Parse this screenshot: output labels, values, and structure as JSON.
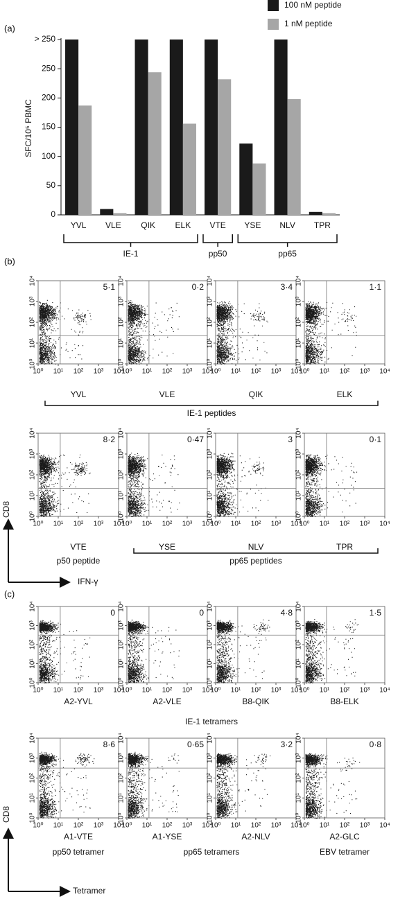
{
  "chart_data": [
    {
      "type": "bar",
      "panel_label": "(a)",
      "ylabel": "SFC/10⁵ PBMC",
      "categories": [
        "YVL",
        "VLE",
        "QIK",
        "ELK",
        "VTE",
        "YSE",
        "NLV",
        "TPR"
      ],
      "series": [
        {
          "name": "100 nM peptide",
          "color": "#1a1a1a",
          "values": [
            300,
            10,
            300,
            300,
            300,
            122,
            300,
            5
          ]
        },
        {
          "name": "1 nM peptide",
          "color": "#a6a6a6",
          "values": [
            187,
            3,
            244,
            156,
            232,
            88,
            198,
            3
          ]
        }
      ],
      "ylim": [
        0,
        300
      ],
      "yticks": [
        0,
        50,
        100,
        150,
        200,
        250,
        {
          "value": 300,
          "label": "> 250"
        }
      ],
      "groups": [
        {
          "label": "IE-1",
          "categories": [
            "YVL",
            "VLE",
            "QIK",
            "ELK"
          ]
        },
        {
          "label": "pp50",
          "categories": [
            "VTE"
          ]
        },
        {
          "label": "pp65",
          "categories": [
            "YSE",
            "NLV",
            "TPR"
          ]
        }
      ]
    },
    {
      "type": "flow",
      "panel_label": "(b)",
      "ylabel": "CD8",
      "xlabel": "IFN-γ",
      "xscale": "log",
      "yscale": "log",
      "lim": [
        1,
        10000
      ],
      "ticks": [
        {
          "value": 1,
          "label": "10⁰"
        },
        {
          "value": 10,
          "label": "10¹"
        },
        {
          "value": 100,
          "label": "10²"
        },
        {
          "value": 1000,
          "label": "10³"
        },
        {
          "value": 10000,
          "label": "10⁴"
        }
      ],
      "rows": [
        {
          "plots": [
            {
              "name": "YVL",
              "annotation": "5·1"
            },
            {
              "name": "VLE",
              "annotation": "0·2"
            },
            {
              "name": "QIK",
              "annotation": "3·4"
            },
            {
              "name": "ELK",
              "annotation": "1·1"
            }
          ],
          "captions": [
            {
              "text": "IE-1 peptides",
              "plots": [
                "YVL",
                "VLE",
                "QIK",
                "ELK"
              ],
              "bracket": true
            }
          ]
        },
        {
          "plots": [
            {
              "name": "VTE",
              "annotation": "8·2"
            },
            {
              "name": "YSE",
              "annotation": "0·47"
            },
            {
              "name": "NLV",
              "annotation": "3"
            },
            {
              "name": "TPR",
              "annotation": "0·1"
            }
          ],
          "captions": [
            {
              "text": "p50 peptide",
              "plots": [
                "VTE"
              ],
              "bracket": false
            },
            {
              "text": "pp65 peptides",
              "plots": [
                "YSE",
                "NLV",
                "TPR"
              ],
              "bracket": true
            }
          ]
        }
      ]
    },
    {
      "type": "flow",
      "panel_label": "(c)",
      "ylabel": "CD8",
      "xlabel": "Tetramer",
      "xscale": "log",
      "yscale": "log",
      "lim": [
        1,
        10000
      ],
      "ticks": [
        {
          "value": 1,
          "label": "10⁰"
        },
        {
          "value": 10,
          "label": "10¹"
        },
        {
          "value": 100,
          "label": "10²"
        },
        {
          "value": 1000,
          "label": "10³"
        },
        {
          "value": 10000,
          "label": "10⁴"
        }
      ],
      "rows": [
        {
          "plots": [
            {
              "name": "A2-YVL",
              "annotation": "0"
            },
            {
              "name": "A2-VLE",
              "annotation": "0"
            },
            {
              "name": "B8-QIK",
              "annotation": "4·8"
            },
            {
              "name": "B8-ELK",
              "annotation": "1·5"
            }
          ],
          "captions": [
            {
              "text": "IE-1 tetramers",
              "plots": [
                "A2-YVL",
                "A2-VLE",
                "B8-QIK",
                "B8-ELK"
              ],
              "bracket": false
            }
          ]
        },
        {
          "plots": [
            {
              "name": "A1-VTE",
              "annotation": "8·6"
            },
            {
              "name": "A1-YSE",
              "annotation": "0·65"
            },
            {
              "name": "A2-NLV",
              "annotation": "3·2"
            },
            {
              "name": "A2-GLC",
              "annotation": "0·8"
            }
          ],
          "captions": [
            {
              "text": "pp50 tetramer",
              "plots": [
                "A1-VTE"
              ],
              "bracket": false
            },
            {
              "text": "pp65 tetramers",
              "plots": [
                "A1-YSE",
                "A2-NLV"
              ],
              "bracket": false
            },
            {
              "text": "EBV tetramer",
              "plots": [
                "A2-GLC"
              ],
              "bracket": false
            }
          ]
        }
      ]
    }
  ]
}
